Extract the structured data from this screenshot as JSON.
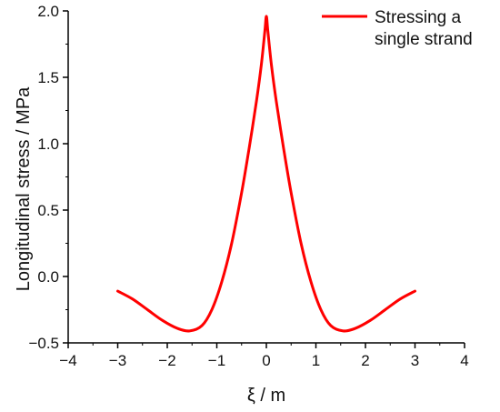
{
  "chart_data": {
    "type": "line",
    "xlabel": "ξ / m",
    "ylabel": "Longitudinal stress / MPa",
    "xlim": [
      -4,
      4
    ],
    "ylim": [
      -0.5,
      2.0
    ],
    "xticks": [
      "−4",
      "−3",
      "−2",
      "−1",
      "0",
      "1",
      "2",
      "3",
      "4"
    ],
    "yticks": [
      "−0.5",
      "0.0",
      "0.5",
      "1.0",
      "1.5",
      "2.0"
    ],
    "grid": false,
    "legend_position": "top-right",
    "series": [
      {
        "name": "Stressing a single strand",
        "color": "#ff0000",
        "x": [
          -3.0,
          -2.7,
          -2.4,
          -2.1,
          -1.8,
          -1.55,
          -1.3,
          -1.1,
          -0.9,
          -0.7,
          -0.5,
          -0.35,
          -0.2,
          -0.1,
          -0.03,
          0.0,
          0.03,
          0.1,
          0.2,
          0.35,
          0.5,
          0.7,
          0.9,
          1.1,
          1.3,
          1.55,
          1.8,
          2.1,
          2.4,
          2.7,
          3.0
        ],
        "y": [
          -0.11,
          -0.17,
          -0.25,
          -0.33,
          -0.39,
          -0.41,
          -0.37,
          -0.25,
          -0.04,
          0.25,
          0.63,
          0.96,
          1.32,
          1.6,
          1.85,
          1.96,
          1.85,
          1.6,
          1.32,
          0.96,
          0.63,
          0.25,
          -0.04,
          -0.25,
          -0.37,
          -0.41,
          -0.39,
          -0.33,
          -0.25,
          -0.17,
          -0.11
        ]
      }
    ]
  }
}
